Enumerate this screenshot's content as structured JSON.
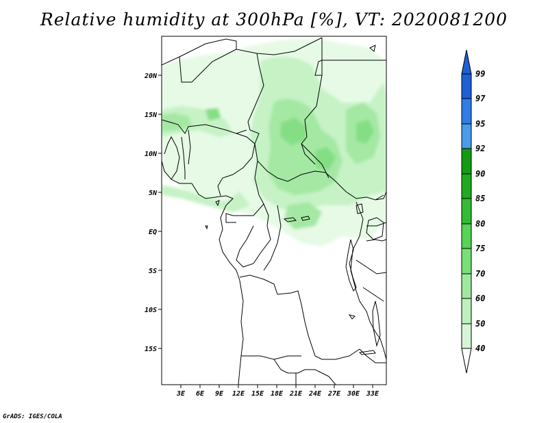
{
  "title": "Relative humidity at 300hPa [%], VT: 2020081200",
  "credit": "GrADS: IGES/COLA",
  "map": {
    "lat_labels": [
      "20N",
      "15N",
      "10N",
      "5N",
      "EQ",
      "5S",
      "10S",
      "15S"
    ],
    "lon_labels": [
      "3E",
      "6E",
      "9E",
      "12E",
      "15E",
      "18E",
      "21E",
      "24E",
      "27E",
      "30E",
      "33E"
    ]
  },
  "colorbar": {
    "labels": [
      "99",
      "97",
      "95",
      "92",
      "90",
      "85",
      "80",
      "75",
      "70",
      "60",
      "50",
      "40"
    ],
    "colors": {
      "99": "#1e5fd6",
      "97": "#2f7de6",
      "95": "#4a9be8",
      "92": "#139a13",
      "90": "#22a922",
      "85": "#33bb33",
      "80": "#55d455",
      "75": "#79e079",
      "70": "#9ee89e",
      "60": "#bdf0bd",
      "50": "#d6f6d6",
      "40": "#ebfbeb"
    }
  },
  "colors": {
    "light": "#e6fae6",
    "medium": "#c6f2c6",
    "strong": "#a4e8a4",
    "deep": "#84de84",
    "border": "#000000"
  }
}
